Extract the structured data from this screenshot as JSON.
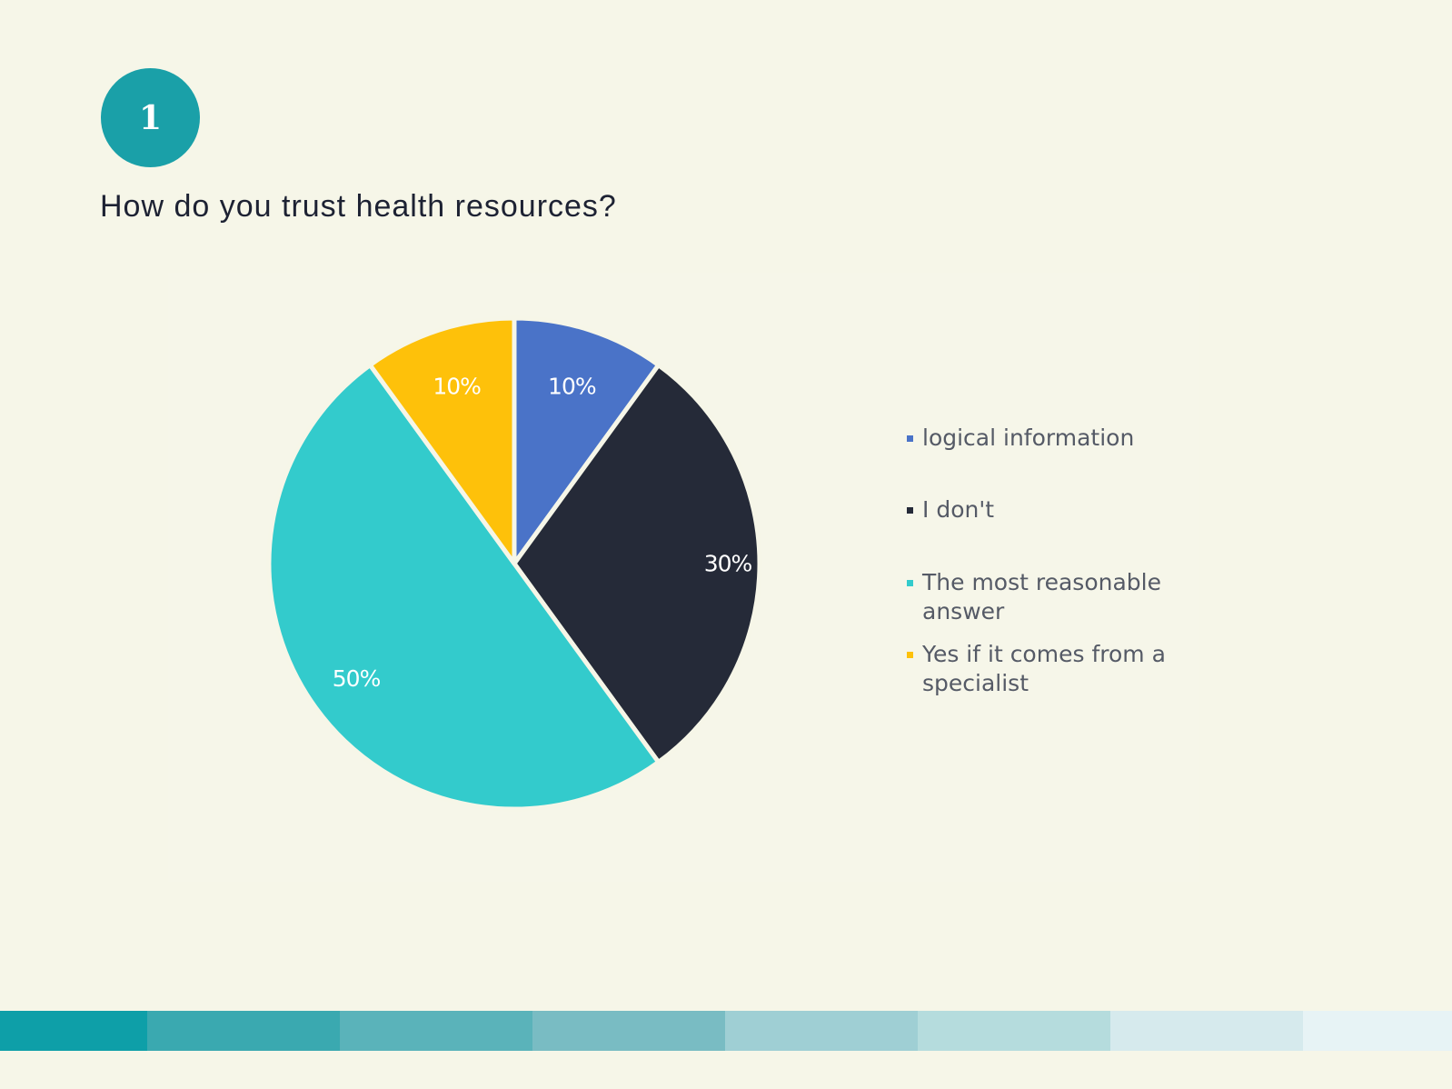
{
  "badge": {
    "number": "1"
  },
  "question": "How do you trust health resources?",
  "chart_data": {
    "type": "pie",
    "title": "",
    "slices": [
      {
        "label": "logical information",
        "value": 10,
        "display": "10%",
        "color": "#4a73c8"
      },
      {
        "label": "I don't",
        "value": 30,
        "display": "30%",
        "color": "#252a38"
      },
      {
        "label": "The most reasonable answer",
        "value": 50,
        "display": "50%",
        "color": "#33cbcc"
      },
      {
        "label": "Yes if it comes from a specialist",
        "value": 10,
        "display": "10%",
        "color": "#fec10a"
      }
    ],
    "legend_position": "right"
  },
  "footer_stripes": [
    "#0e9fa8",
    "#3aa9b0",
    "#5ab3ba",
    "#79bcc3",
    "#9fcfd4",
    "#b5dcdd",
    "#d6eaed",
    "#e7f3f5"
  ]
}
